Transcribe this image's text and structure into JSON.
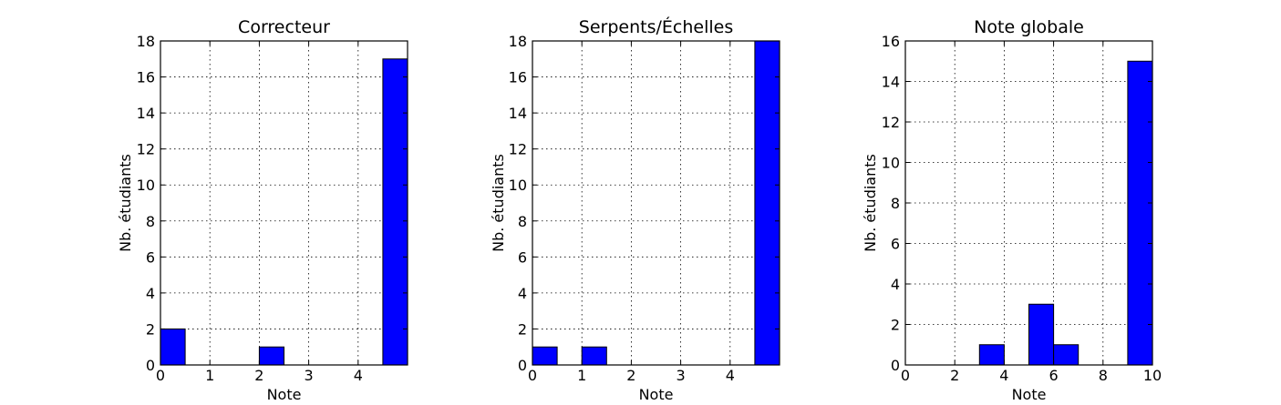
{
  "chart_data": [
    {
      "type": "bar",
      "title": "Correcteur",
      "xlabel": "Note",
      "ylabel": "Nb. étudiants",
      "xlim": [
        0,
        5
      ],
      "ylim": [
        0,
        18
      ],
      "xticks": [
        0,
        1,
        2,
        3,
        4
      ],
      "yticks": [
        0,
        2,
        4,
        6,
        8,
        10,
        12,
        14,
        16,
        18
      ],
      "bin_edges": [
        0,
        0.5,
        1,
        1.5,
        2,
        2.5,
        3,
        3.5,
        4,
        4.5,
        5
      ],
      "values": [
        2,
        0,
        0,
        0,
        1,
        0,
        0,
        0,
        0,
        17
      ],
      "color": "#0000ff",
      "grid": true
    },
    {
      "type": "bar",
      "title": "Serpents/Échelles",
      "xlabel": "Note",
      "ylabel": "Nb. étudiants",
      "xlim": [
        0,
        5
      ],
      "ylim": [
        0,
        18
      ],
      "xticks": [
        0,
        1,
        2,
        3,
        4
      ],
      "yticks": [
        0,
        2,
        4,
        6,
        8,
        10,
        12,
        14,
        16,
        18
      ],
      "bin_edges": [
        0,
        0.5,
        1,
        1.5,
        2,
        2.5,
        3,
        3.5,
        4,
        4.5,
        5
      ],
      "values": [
        1,
        0,
        1,
        0,
        0,
        0,
        0,
        0,
        0,
        18
      ],
      "color": "#0000ff",
      "grid": true
    },
    {
      "type": "bar",
      "title": "Note globale",
      "xlabel": "Note",
      "ylabel": "Nb. étudiants",
      "xlim": [
        0,
        10
      ],
      "ylim": [
        0,
        16
      ],
      "xticks": [
        0,
        2,
        4,
        6,
        8,
        10
      ],
      "yticks": [
        0,
        2,
        4,
        6,
        8,
        10,
        12,
        14,
        16
      ],
      "bin_edges": [
        0,
        1,
        2,
        3,
        4,
        5,
        6,
        7,
        8,
        9,
        10
      ],
      "values": [
        0,
        0,
        0,
        1,
        0,
        3,
        1,
        0,
        0,
        15
      ],
      "color": "#0000ff",
      "grid": true
    }
  ]
}
